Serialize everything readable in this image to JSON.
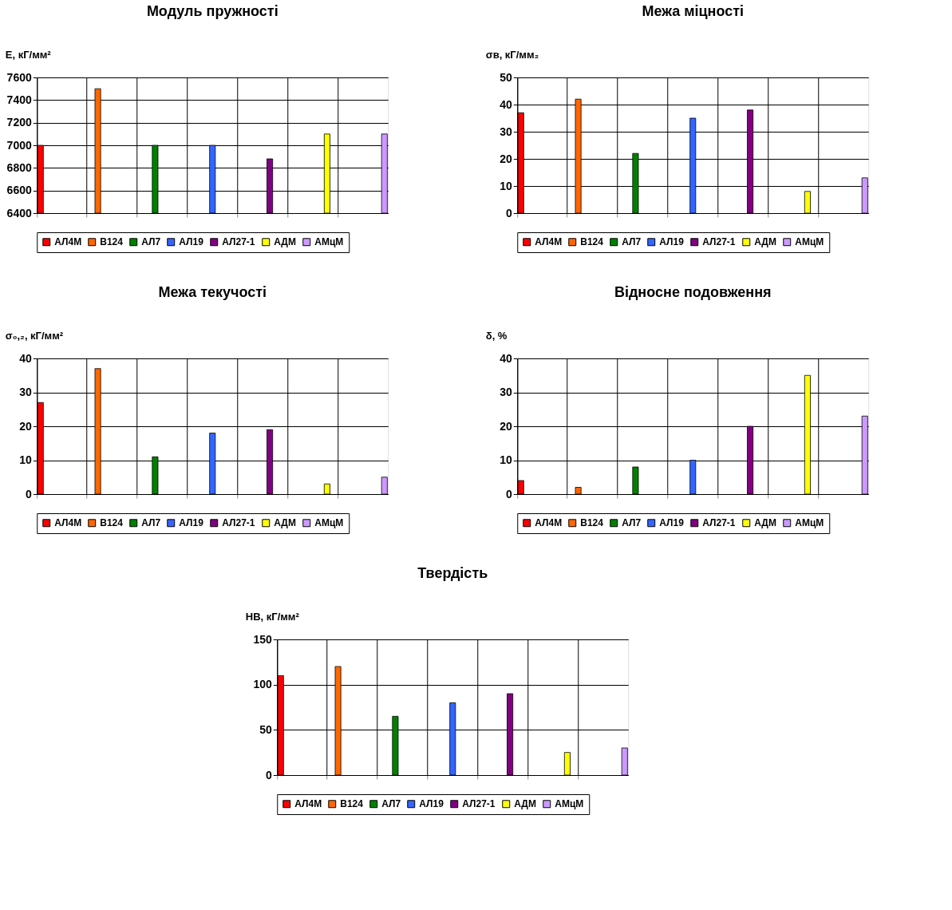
{
  "chart_data": [
    {
      "type": "bar",
      "title": "Модуль пружності",
      "ylabel": "E, кГ/мм²",
      "categories": [
        null,
        null,
        null,
        null,
        null,
        null,
        null
      ],
      "ylim": [
        6400,
        7600
      ],
      "yticks": [
        6400,
        6600,
        6800,
        7000,
        7200,
        7400,
        7600
      ],
      "grid": true,
      "legend": "bottom",
      "tick_labels": "y",
      "series": [
        {
          "name": "АЛ4М",
          "color": "#ff0000",
          "values": [
            7000,
            null,
            null,
            null,
            null,
            null,
            null
          ]
        },
        {
          "name": "В124",
          "color": "#ff6600",
          "values": [
            null,
            7500,
            null,
            null,
            null,
            null,
            null
          ]
        },
        {
          "name": "АЛ7",
          "color": "#008000",
          "values": [
            null,
            null,
            7000,
            null,
            null,
            null,
            null
          ]
        },
        {
          "name": "АЛ19",
          "color": "#3366ff",
          "values": [
            null,
            null,
            null,
            7000,
            null,
            null,
            null
          ]
        },
        {
          "name": "АЛ27-1",
          "color": "#800080",
          "values": [
            null,
            null,
            null,
            null,
            6880,
            null,
            null
          ]
        },
        {
          "name": "АДМ",
          "color": "#ffff00",
          "values": [
            null,
            null,
            null,
            null,
            null,
            7100,
            null
          ]
        },
        {
          "name": "АМцМ",
          "color": "#cc99ff",
          "values": [
            null,
            null,
            null,
            null,
            null,
            null,
            7100
          ]
        }
      ]
    },
    {
      "type": "bar",
      "title": "Межа міцності",
      "ylabel": "σв, кГ/мм₂",
      "categories": [
        null,
        null,
        null,
        null,
        null,
        null,
        null
      ],
      "ylim": [
        0,
        50
      ],
      "yticks": [
        0,
        10,
        20,
        30,
        40,
        50
      ],
      "grid": true,
      "legend": "bottom",
      "tick_labels": "y",
      "series": [
        {
          "name": "АЛ4М",
          "color": "#ff0000",
          "values": [
            37,
            null,
            null,
            null,
            null,
            null,
            null
          ]
        },
        {
          "name": "В124",
          "color": "#ff6600",
          "values": [
            null,
            42,
            null,
            null,
            null,
            null,
            null
          ]
        },
        {
          "name": "АЛ7",
          "color": "#008000",
          "values": [
            null,
            null,
            22,
            null,
            null,
            null,
            null
          ]
        },
        {
          "name": "АЛ19",
          "color": "#3366ff",
          "values": [
            null,
            null,
            null,
            35,
            null,
            null,
            null
          ]
        },
        {
          "name": "АЛ27-1",
          "color": "#800080",
          "values": [
            null,
            null,
            null,
            null,
            38,
            null,
            null
          ]
        },
        {
          "name": "АДМ",
          "color": "#ffff00",
          "values": [
            null,
            null,
            null,
            null,
            null,
            8,
            null
          ]
        },
        {
          "name": "АМцМ",
          "color": "#cc99ff",
          "values": [
            null,
            null,
            null,
            null,
            null,
            null,
            13
          ]
        }
      ]
    },
    {
      "type": "bar",
      "title": "Межа текучості",
      "ylabel": "σ₀,₂, кГ/мм²",
      "categories": [
        null,
        null,
        null,
        null,
        null,
        null,
        null
      ],
      "ylim": [
        0,
        40
      ],
      "yticks": [
        0,
        10,
        20,
        30,
        40
      ],
      "grid": true,
      "legend": "bottom",
      "tick_labels": "y",
      "series": [
        {
          "name": "АЛ4М",
          "color": "#ff0000",
          "values": [
            27,
            null,
            null,
            null,
            null,
            null,
            null
          ]
        },
        {
          "name": "В124",
          "color": "#ff6600",
          "values": [
            null,
            37,
            null,
            null,
            null,
            null,
            null
          ]
        },
        {
          "name": "АЛ7",
          "color": "#008000",
          "values": [
            null,
            null,
            11,
            null,
            null,
            null,
            null
          ]
        },
        {
          "name": "АЛ19",
          "color": "#3366ff",
          "values": [
            null,
            null,
            null,
            18,
            null,
            null,
            null
          ]
        },
        {
          "name": "АЛ27-1",
          "color": "#800080",
          "values": [
            null,
            null,
            null,
            null,
            19,
            null,
            null
          ]
        },
        {
          "name": "АДМ",
          "color": "#ffff00",
          "values": [
            null,
            null,
            null,
            null,
            null,
            3,
            null
          ]
        },
        {
          "name": "АМцМ",
          "color": "#cc99ff",
          "values": [
            null,
            null,
            null,
            null,
            null,
            null,
            5
          ]
        }
      ]
    },
    {
      "type": "bar",
      "title": "Відносне подовження",
      "ylabel": "δ, %",
      "categories": [
        null,
        null,
        null,
        null,
        null,
        null,
        null
      ],
      "ylim": [
        0,
        40
      ],
      "yticks": [
        0,
        10,
        20,
        30,
        40
      ],
      "grid": true,
      "legend": "bottom",
      "tick_labels": "y",
      "series": [
        {
          "name": "АЛ4М",
          "color": "#ff0000",
          "values": [
            4,
            null,
            null,
            null,
            null,
            null,
            null
          ]
        },
        {
          "name": "В124",
          "color": "#ff6600",
          "values": [
            null,
            2,
            null,
            null,
            null,
            null,
            null
          ]
        },
        {
          "name": "АЛ7",
          "color": "#008000",
          "values": [
            null,
            null,
            8,
            null,
            null,
            null,
            null
          ]
        },
        {
          "name": "АЛ19",
          "color": "#3366ff",
          "values": [
            null,
            null,
            null,
            10,
            null,
            null,
            null
          ]
        },
        {
          "name": "АЛ27-1",
          "color": "#800080",
          "values": [
            null,
            null,
            null,
            null,
            20,
            null,
            null
          ]
        },
        {
          "name": "АДМ",
          "color": "#ffff00",
          "values": [
            null,
            null,
            null,
            null,
            null,
            35,
            null
          ]
        },
        {
          "name": "АМцМ",
          "color": "#cc99ff",
          "values": [
            null,
            null,
            null,
            null,
            null,
            null,
            23
          ]
        }
      ]
    },
    {
      "type": "bar",
      "title": "Твердість",
      "ylabel": "HB, кГ/мм²",
      "categories": [
        null,
        null,
        null,
        null,
        null,
        null,
        null
      ],
      "ylim": [
        0,
        150
      ],
      "yticks": [
        0,
        50,
        100,
        150
      ],
      "grid": true,
      "legend": "bottom",
      "tick_labels": "y",
      "series": [
        {
          "name": "АЛ4М",
          "color": "#ff0000",
          "values": [
            110,
            null,
            null,
            null,
            null,
            null,
            null
          ]
        },
        {
          "name": "В124",
          "color": "#ff6600",
          "values": [
            null,
            120,
            null,
            null,
            null,
            null,
            null
          ]
        },
        {
          "name": "АЛ7",
          "color": "#008000",
          "values": [
            null,
            null,
            65,
            null,
            null,
            null,
            null
          ]
        },
        {
          "name": "АЛ19",
          "color": "#3366ff",
          "values": [
            null,
            null,
            null,
            80,
            null,
            null,
            null
          ]
        },
        {
          "name": "АЛ27-1",
          "color": "#800080",
          "values": [
            null,
            null,
            null,
            null,
            90,
            null,
            null
          ]
        },
        {
          "name": "АДМ",
          "color": "#ffff00",
          "values": [
            null,
            null,
            null,
            null,
            null,
            25,
            null
          ]
        },
        {
          "name": "АМцМ",
          "color": "#cc99ff",
          "values": [
            null,
            null,
            null,
            null,
            null,
            null,
            30
          ]
        }
      ]
    }
  ]
}
